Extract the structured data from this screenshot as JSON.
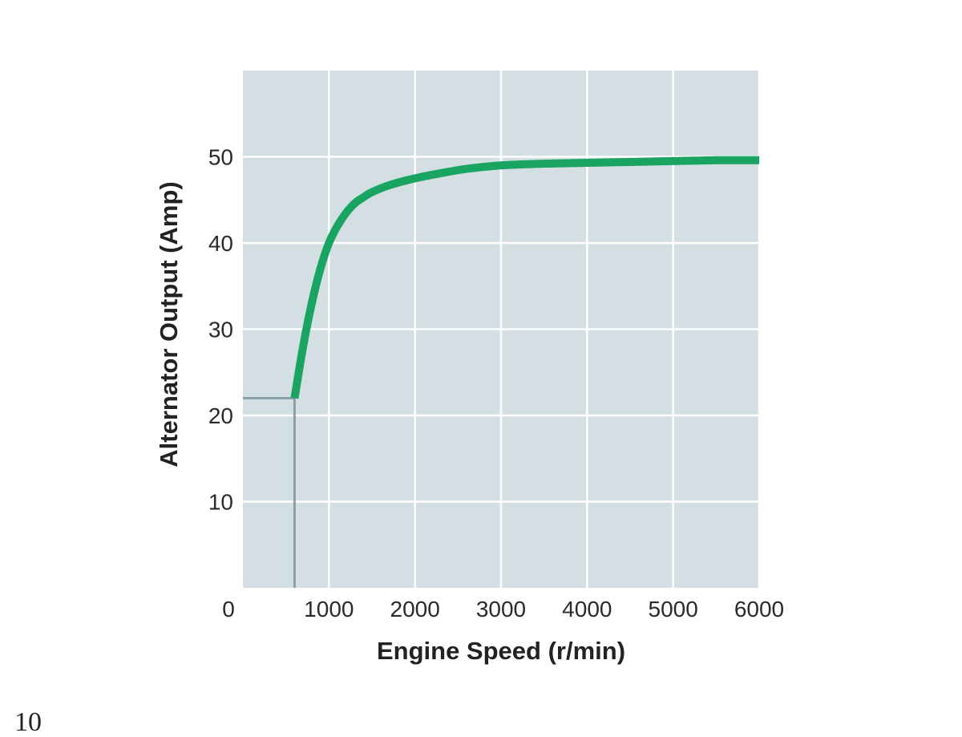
{
  "colors": {
    "plot_background": "#d3dfe3",
    "grid": "#ffffff",
    "curve": "#1aa462",
    "reference_line": "#8a9eab"
  },
  "page_mark": "10",
  "chart_data": {
    "type": "line",
    "xlabel": "Engine Speed (r/min)",
    "ylabel": "Alternator Output (Amp)",
    "xlim": [
      0,
      6000
    ],
    "ylim": [
      0,
      60
    ],
    "xticks": [
      0,
      1000,
      2000,
      3000,
      4000,
      5000,
      6000
    ],
    "xtick_labels": [
      "0",
      "1000",
      "2000",
      "3000",
      "4000",
      "5000",
      "6000"
    ],
    "yticks": [
      10,
      20,
      30,
      40,
      50
    ],
    "ytick_labels": [
      "10",
      "20",
      "30",
      "40",
      "50"
    ],
    "grid": true,
    "series": [
      {
        "x": [
          600,
          700,
          800,
          900,
          1000,
          1100,
          1200,
          1300,
          1400,
          1500,
          1700,
          2000,
          2300,
          2600,
          3000,
          3500,
          4000,
          4500,
          5000,
          5500,
          6000
        ],
        "y": [
          22,
          28,
          33,
          37,
          40,
          42,
          43.5,
          44.6,
          45.3,
          45.9,
          46.7,
          47.5,
          48.1,
          48.6,
          49.0,
          49.2,
          49.3,
          49.4,
          49.5,
          49.6,
          49.6
        ]
      }
    ],
    "reference": {
      "x": 600,
      "y": 22
    }
  }
}
